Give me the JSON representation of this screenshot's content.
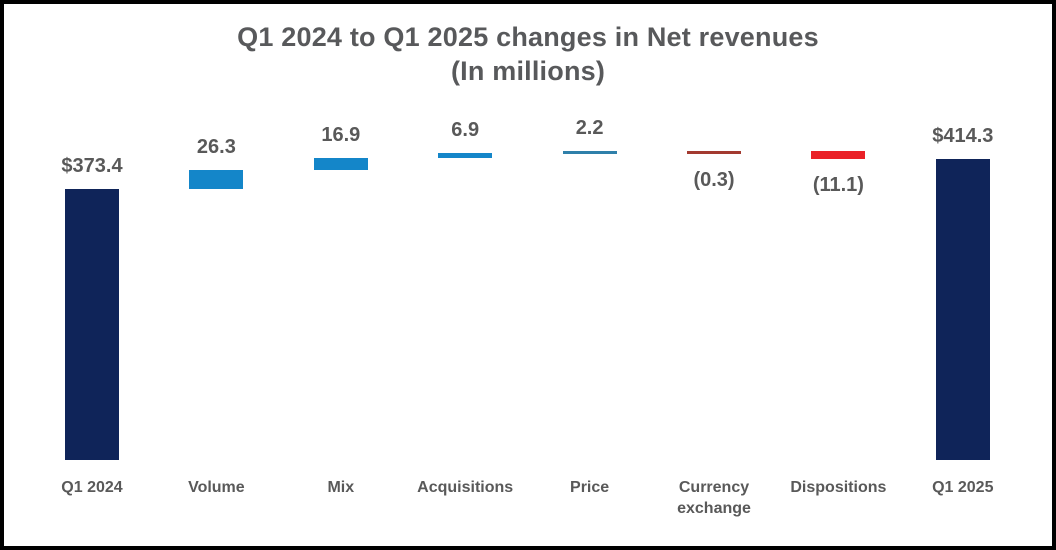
{
  "chart_data": {
    "type": "bar",
    "subtype": "waterfall",
    "title": "Q1 2024 to Q1 2025 changes in Net revenues",
    "subtitle": "(In millions)",
    "unit": "millions USD",
    "grid": false,
    "legend": "none",
    "ylim": [
      0,
      440
    ],
    "categories": [
      "Q1 2024",
      "Volume",
      "Mix",
      "Acquisitions",
      "Price",
      "Currency exchange",
      "Dispositions",
      "Q1 2025"
    ],
    "columns": [
      {
        "category": "Q1 2024",
        "value_label": "$373.4",
        "value": 373.4,
        "kind": "total",
        "color": "#0f2459"
      },
      {
        "category": "Volume",
        "value_label": "26.3",
        "value": 26.3,
        "kind": "delta",
        "color": "#1486c9"
      },
      {
        "category": "Mix",
        "value_label": "16.9",
        "value": 16.9,
        "kind": "delta",
        "color": "#1486c9"
      },
      {
        "category": "Acquisitions",
        "value_label": "6.9",
        "value": 6.9,
        "kind": "delta",
        "color": "#1486c9"
      },
      {
        "category": "Price",
        "value_label": "2.2",
        "value": 2.2,
        "kind": "delta",
        "color": "#2f80aa"
      },
      {
        "category": "Currency exchange",
        "value_label": "(0.3)",
        "value": -0.3,
        "kind": "delta",
        "color": "#a33a30"
      },
      {
        "category": "Dispositions",
        "value_label": "(11.1)",
        "value": -11.1,
        "kind": "delta",
        "color": "#ea2127"
      },
      {
        "category": "Q1 2025",
        "value_label": "$414.3",
        "value": 414.3,
        "kind": "total",
        "color": "#0f2459"
      }
    ],
    "colors": {
      "total_bar": "#0f2459",
      "positive_bar": "#1486c9",
      "negative_bar": "#ea2127",
      "text": "#595959",
      "frame_border": "#000000",
      "background": "#ffffff"
    }
  }
}
